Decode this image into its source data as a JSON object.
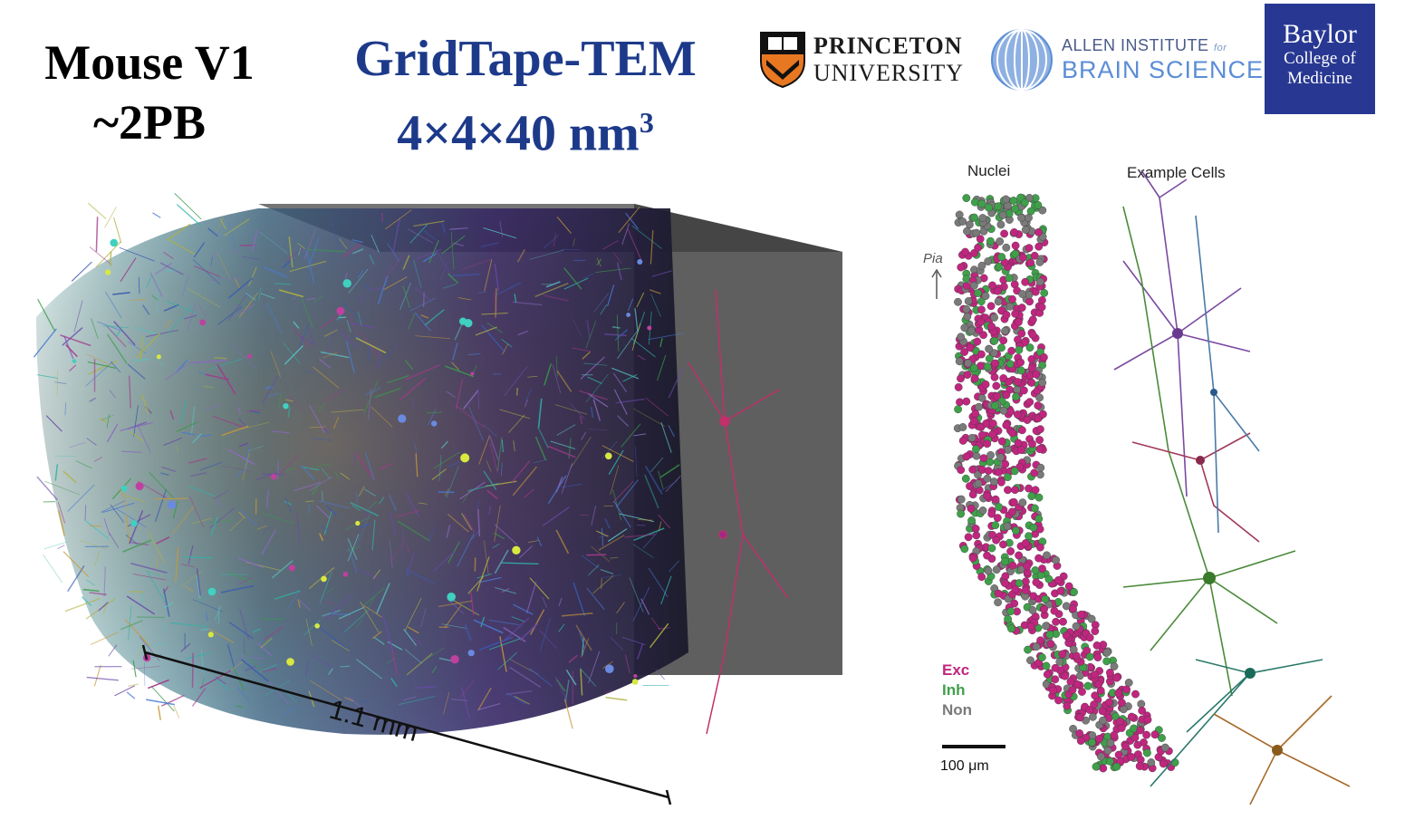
{
  "header": {
    "title_left_line1": "Mouse V1",
    "title_left_line2": "~2PB",
    "title_mid_line1": "GridTape-TEM",
    "title_mid_line2_base": "4×4×40 nm",
    "title_mid_line2_sup": "3"
  },
  "logos": {
    "princeton_name": "PRINCETON",
    "princeton_sub": "UNIVERSITY",
    "allen_line1": "ALLEN INSTITUTE",
    "allen_for": "for",
    "allen_line2": "BRAIN SCIENCE",
    "baylor_line1": "Baylor",
    "baylor_line2": "College of",
    "baylor_line3": "Medicine"
  },
  "volume": {
    "scale_label": "1.1 mm"
  },
  "panel": {
    "nuclei_title": "Nuclei",
    "cells_title": "Example Cells",
    "pia_label": "Pia",
    "legend": [
      {
        "label": "Exc",
        "color": "#c0267f"
      },
      {
        "label": "Inh",
        "color": "#3fa04a"
      },
      {
        "label": "Non",
        "color": "#7a7a7a"
      }
    ],
    "scalebar_label": "100 μm"
  },
  "colors": {
    "title_blue": "#1d3a8a",
    "baylor_blue": "#283892",
    "allen_blue": "#5b8dd6",
    "princeton_orange": "#e87722"
  }
}
